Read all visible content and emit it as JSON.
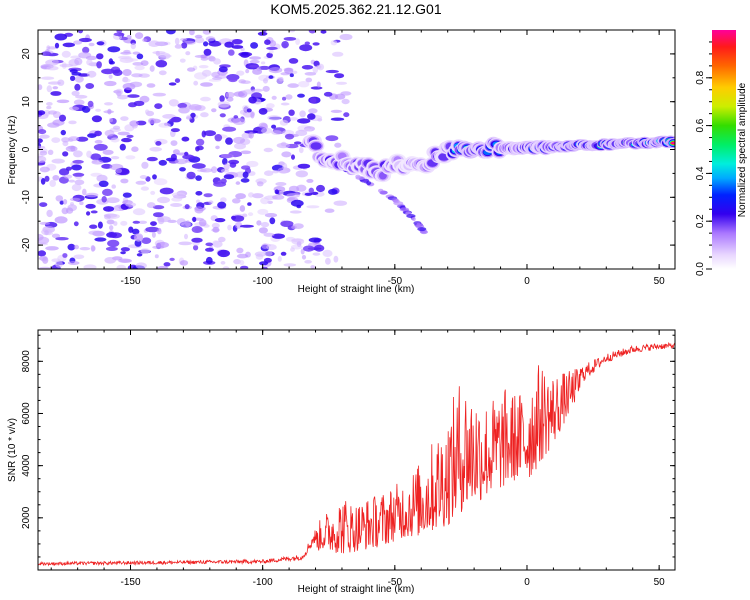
{
  "title": "KOM5.2025.362.21.12.G01",
  "colors": {
    "snr_line": "#ee2222",
    "axis": "#000000"
  },
  "chart_data": [
    {
      "type": "heatmap",
      "title": "KOM5.2025.362.21.12.G01",
      "xlabel": "Height of straight line (km)",
      "ylabel": "Frequency (Hz)",
      "xlim": [
        -185,
        56
      ],
      "ylim": [
        -25,
        25
      ],
      "xticks": [
        -150,
        -100,
        -50,
        0,
        50
      ],
      "yticks": [
        -20,
        -10,
        0,
        10,
        20
      ],
      "colorbar": {
        "label": "Normalized spectral amplitude",
        "range": [
          0.0,
          1.0
        ],
        "ticks": [
          0.0,
          0.2,
          0.4,
          0.6,
          0.8
        ],
        "tick_labels": [
          "0.0",
          "0.2",
          "0.4",
          "0.6",
          "0.8"
        ]
      },
      "ridge": {
        "x": [
          -82,
          -78,
          -70,
          -62,
          -55,
          -48,
          -42,
          -36,
          -30,
          -22,
          -15,
          -8,
          0,
          10,
          20,
          30,
          40,
          50,
          56
        ],
        "y": [
          2.5,
          -1.5,
          -2.5,
          -3.5,
          -4.5,
          -3,
          -4,
          -2,
          0,
          0.3,
          0.5,
          0.5,
          0.2,
          0.5,
          0.8,
          1,
          1.3,
          1.5,
          1.6
        ],
        "amp": [
          0.55,
          0.5,
          0.45,
          0.45,
          0.5,
          0.35,
          0.45,
          0.5,
          0.55,
          0.7,
          0.65,
          0.6,
          0.75,
          0.7,
          0.8,
          0.85,
          0.85,
          0.95,
          0.95
        ]
      },
      "branch": {
        "x": [
          -72,
          -60,
          -50,
          -42,
          -38
        ],
        "y": [
          -3,
          -7,
          -10.5,
          -15,
          -18
        ]
      }
    },
    {
      "type": "line",
      "xlabel": "Height of straight line (km)",
      "ylabel": "SNR (10 * v/v)",
      "xlim": [
        -185,
        56
      ],
      "ylim": [
        0,
        9200
      ],
      "xticks": [
        -150,
        -100,
        -50,
        0,
        50
      ],
      "yticks": [
        2000,
        4000,
        6000,
        8000
      ],
      "envelope": {
        "x": [
          -185,
          -100,
          -85,
          -78,
          -70,
          -65,
          -55,
          -48,
          -40,
          -30,
          -25,
          -15,
          -8,
          -3,
          0,
          5,
          10,
          15,
          20,
          30,
          40,
          50,
          56
        ],
        "low": [
          100,
          150,
          250,
          800,
          600,
          700,
          900,
          1200,
          1300,
          1700,
          2200,
          2800,
          3200,
          3500,
          3300,
          4100,
          4800,
          5800,
          6800,
          7800,
          8200,
          8350,
          8400
        ],
        "high": [
          300,
          400,
          600,
          2000,
          2900,
          2600,
          3000,
          3400,
          4200,
          6000,
          7500,
          6500,
          7000,
          6800,
          7400,
          8000,
          7600,
          7600,
          7800,
          8300,
          8600,
          8700,
          8700
        ]
      }
    }
  ]
}
